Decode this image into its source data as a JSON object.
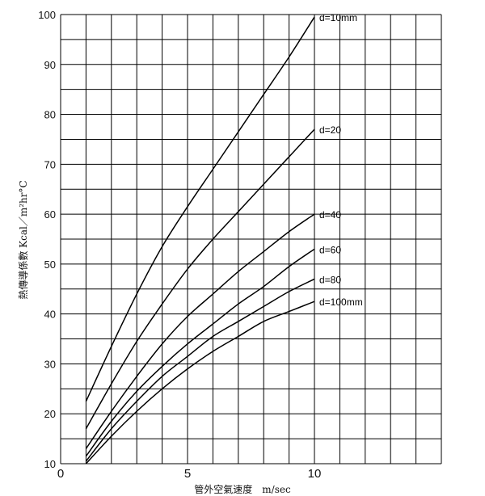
{
  "chart_data": {
    "type": "line",
    "xlabel": "管外空氣速度　m/sec",
    "ylabel": "熱傳導係數 Kcal／m²hr°C",
    "xlim": [
      0,
      15
    ],
    "ylim": [
      10,
      100
    ],
    "x_ticks": [
      {
        "value": 0,
        "label": "0"
      },
      {
        "value": 5,
        "label": "5"
      },
      {
        "value": 10,
        "label": "10"
      }
    ],
    "y_ticks": [
      {
        "value": 10,
        "label": "10"
      },
      {
        "value": 20,
        "label": "20"
      },
      {
        "value": 30,
        "label": "30"
      },
      {
        "value": 40,
        "label": "40"
      },
      {
        "value": 50,
        "label": "50"
      },
      {
        "value": 60,
        "label": "60"
      },
      {
        "value": 70,
        "label": "70"
      },
      {
        "value": 80,
        "label": "80"
      },
      {
        "value": 90,
        "label": "90"
      },
      {
        "value": 100,
        "label": "100"
      }
    ],
    "grid": true,
    "grid_x_step": 1,
    "grid_y_step": 5,
    "series": [
      {
        "name": "d=10mm",
        "x": [
          1,
          2,
          3,
          4,
          5,
          6,
          7,
          8,
          9,
          10
        ],
        "y": [
          22.5,
          33.5,
          44,
          53.5,
          61.5,
          69,
          76.5,
          84,
          91.5,
          99.5
        ]
      },
      {
        "name": "d=20",
        "x": [
          1,
          2,
          3,
          4,
          5,
          6,
          7,
          8,
          9,
          10
        ],
        "y": [
          17,
          26,
          34.5,
          42,
          49,
          55,
          60.5,
          66,
          71.5,
          77
        ]
      },
      {
        "name": "d=40",
        "x": [
          1,
          2,
          3,
          4,
          5,
          6,
          7,
          8,
          9,
          10
        ],
        "y": [
          13,
          20.5,
          27.5,
          34,
          39.5,
          44,
          48.5,
          52.5,
          56.5,
          60
        ]
      },
      {
        "name": "d=60",
        "x": [
          1,
          2,
          3,
          4,
          5,
          6,
          7,
          8,
          9,
          10
        ],
        "y": [
          11.5,
          18.5,
          24.5,
          29.5,
          34,
          38,
          42,
          45.5,
          49.5,
          53
        ]
      },
      {
        "name": "d=80",
        "x": [
          1,
          2,
          3,
          4,
          5,
          6,
          7,
          8,
          9,
          10
        ],
        "y": [
          10.5,
          17,
          22.5,
          27.5,
          31.5,
          35.5,
          38.5,
          41.5,
          44.5,
          47
        ]
      },
      {
        "name": "d=100mm",
        "x": [
          1,
          2,
          3,
          4,
          5,
          6,
          7,
          8,
          9,
          10
        ],
        "y": [
          10,
          15.5,
          20.5,
          25,
          29,
          32.5,
          35.5,
          38.5,
          40.5,
          42.5
        ]
      }
    ]
  }
}
